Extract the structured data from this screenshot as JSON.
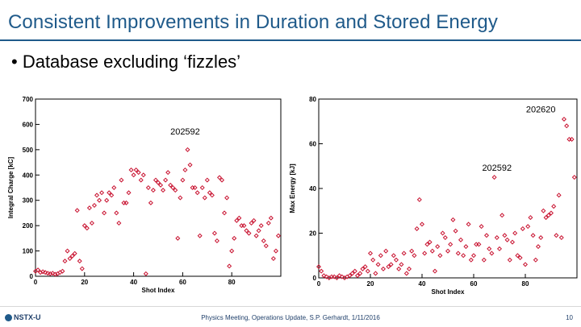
{
  "slide": {
    "title": "Consistent Improvements in Duration and Stored Energy",
    "bullet": "• Database excluding ‘fizzles’"
  },
  "footer": {
    "logo": "NSTX-U",
    "center": "Physics Meeting, Operations Update, S.P. Gerhardt, 1/11/2016",
    "page": "10"
  },
  "colors": {
    "title": "#1f5a8a",
    "marker": "#c8102e"
  },
  "chart_data": [
    {
      "type": "scatter",
      "xlabel": "Shot Index",
      "ylabel": "Integral Charge [kC]",
      "xlim": [
        0,
        100
      ],
      "ylim": [
        0,
        700
      ],
      "xticks": [
        "0",
        "20",
        "40",
        "60",
        "80"
      ],
      "yticks": [
        "0",
        "100",
        "200",
        "300",
        "400",
        "500",
        "600",
        "700"
      ],
      "annotations": [
        {
          "text": "202592",
          "x": 61,
          "y": 560
        }
      ],
      "x": [
        0,
        1,
        2,
        3,
        4,
        5,
        6,
        7,
        8,
        9,
        10,
        11,
        12,
        13,
        14,
        15,
        16,
        17,
        18,
        19,
        20,
        21,
        22,
        23,
        24,
        25,
        26,
        27,
        28,
        29,
        30,
        31,
        32,
        33,
        34,
        35,
        36,
        37,
        38,
        39,
        40,
        41,
        42,
        43,
        44,
        45,
        46,
        47,
        48,
        49,
        50,
        51,
        52,
        53,
        54,
        55,
        56,
        57,
        58,
        59,
        60,
        61,
        62,
        63,
        64,
        65,
        66,
        67,
        68,
        69,
        70,
        71,
        72,
        73,
        74,
        75,
        76,
        77,
        78,
        79,
        80,
        81,
        82,
        83,
        84,
        85,
        86,
        87,
        88,
        89,
        90,
        91,
        92,
        93,
        94,
        95,
        96,
        97,
        98,
        99
      ],
      "y": [
        20,
        25,
        15,
        18,
        15,
        12,
        10,
        12,
        8,
        10,
        15,
        20,
        60,
        100,
        70,
        80,
        90,
        260,
        60,
        30,
        200,
        190,
        270,
        210,
        280,
        320,
        300,
        330,
        250,
        300,
        330,
        320,
        350,
        250,
        210,
        380,
        290,
        290,
        330,
        420,
        400,
        420,
        410,
        380,
        400,
        10,
        350,
        290,
        340,
        380,
        370,
        360,
        340,
        380,
        410,
        360,
        350,
        340,
        150,
        310,
        380,
        420,
        500,
        440,
        350,
        350,
        330,
        160,
        350,
        310,
        380,
        330,
        320,
        170,
        140,
        390,
        380,
        250,
        310,
        40,
        100,
        150,
        220,
        230,
        200,
        200,
        180,
        170,
        210,
        220,
        160,
        180,
        200,
        140,
        120,
        210,
        230,
        70,
        100,
        160
      ]
    },
    {
      "type": "scatter",
      "xlabel": "Shot Index",
      "ylabel": "Max Energy [kJ]",
      "xlim": [
        0,
        100
      ],
      "ylim": [
        0,
        80
      ],
      "xticks": [
        "0",
        "20",
        "40",
        "60",
        "80"
      ],
      "yticks": [
        "0",
        "20",
        "40",
        "60",
        "80"
      ],
      "annotations": [
        {
          "text": "202620",
          "x": 86,
          "y": 74
        },
        {
          "text": "202592",
          "x": 69,
          "y": 48
        }
      ],
      "x": [
        0,
        1,
        2,
        3,
        4,
        5,
        6,
        7,
        8,
        9,
        10,
        11,
        12,
        13,
        14,
        15,
        16,
        17,
        18,
        19,
        20,
        21,
        22,
        23,
        24,
        25,
        26,
        27,
        28,
        29,
        30,
        31,
        32,
        33,
        34,
        35,
        36,
        37,
        38,
        39,
        40,
        41,
        42,
        43,
        44,
        45,
        46,
        47,
        48,
        49,
        50,
        51,
        52,
        53,
        54,
        55,
        56,
        57,
        58,
        59,
        60,
        61,
        62,
        63,
        64,
        65,
        66,
        67,
        68,
        69,
        70,
        71,
        72,
        73,
        74,
        75,
        76,
        77,
        78,
        79,
        80,
        81,
        82,
        83,
        84,
        85,
        86,
        87,
        88,
        89,
        90,
        91,
        92,
        93,
        94,
        95,
        96,
        97,
        98,
        99
      ],
      "y": [
        5,
        3,
        1,
        0.5,
        0,
        0.5,
        0.5,
        0,
        1,
        0.5,
        0,
        0.5,
        1,
        2,
        3,
        1,
        2,
        4,
        5,
        3,
        11,
        8,
        2,
        6,
        10,
        4,
        12,
        5,
        6,
        10,
        8,
        4,
        6,
        11,
        2,
        4,
        12,
        10,
        22,
        35,
        24,
        11,
        15,
        16,
        12,
        3,
        14,
        10,
        20,
        18,
        12,
        15,
        26,
        21,
        11,
        17,
        10,
        14,
        24,
        8,
        10,
        15,
        15,
        23,
        8,
        19,
        13,
        11,
        45,
        18,
        13,
        28,
        19,
        17,
        8,
        16,
        20,
        10,
        9,
        22,
        6,
        23,
        27,
        19,
        8,
        14,
        18,
        30,
        27,
        28,
        29,
        32,
        19,
        37,
        18,
        71,
        68,
        62,
        62,
        45
      ]
    }
  ]
}
